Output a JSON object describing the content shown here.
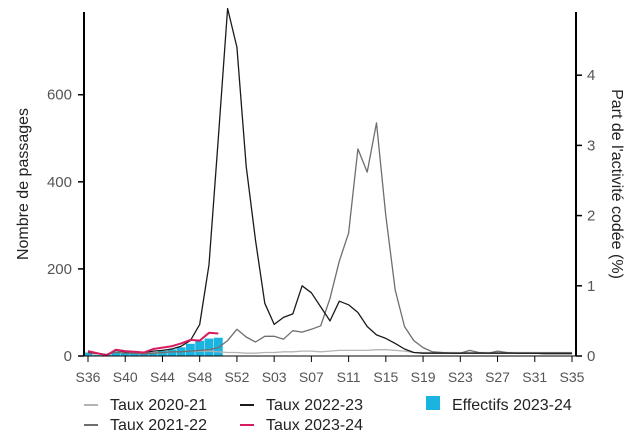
{
  "chart_data": {
    "type": "bar",
    "title": "",
    "ylabel": "Nombre de passages",
    "y2label": "Part de l'activité codée (%)",
    "xlabel": "",
    "ylim": [
      0,
      790
    ],
    "y2lim": [
      0,
      4.9
    ],
    "yticks": [
      0,
      200,
      400,
      600
    ],
    "y2ticks": [
      0,
      1,
      2,
      3,
      4
    ],
    "week_count": 53,
    "xticks": [
      {
        "index": 0,
        "label": "S36"
      },
      {
        "index": 4,
        "label": "S40"
      },
      {
        "index": 8,
        "label": "S44"
      },
      {
        "index": 12,
        "label": "S48"
      },
      {
        "index": 16,
        "label": "S52"
      },
      {
        "index": 20,
        "label": "S03"
      },
      {
        "index": 24,
        "label": "S07"
      },
      {
        "index": 28,
        "label": "S11"
      },
      {
        "index": 32,
        "label": "S15"
      },
      {
        "index": 36,
        "label": "S19"
      },
      {
        "index": 40,
        "label": "S23"
      },
      {
        "index": 44,
        "label": "S27"
      },
      {
        "index": 48,
        "label": "S31"
      },
      {
        "index": 52,
        "label": "S35"
      }
    ],
    "bars": {
      "name": "Effectifs 2023-24",
      "color": "#1bb3e0",
      "axis": "left",
      "values": [
        8,
        2,
        3,
        10,
        8,
        7,
        5,
        8,
        12,
        15,
        20,
        28,
        35,
        40,
        42
      ]
    },
    "series": [
      {
        "name": "Taux 2020-21",
        "color": "#b3b3b3",
        "axis": "right",
        "values": [
          0.05,
          0.03,
          0.02,
          0.08,
          0.05,
          0.05,
          0.04,
          0.05,
          0.05,
          0.06,
          0.06,
          0.07,
          0.07,
          0.07,
          0.06,
          0.05,
          0.05,
          0.04,
          0.04,
          0.05,
          0.05,
          0.06,
          0.06,
          0.07,
          0.07,
          0.06,
          0.07,
          0.08,
          0.08,
          0.08,
          0.08,
          0.09,
          0.09,
          0.08,
          0.07,
          0.05,
          0.05,
          0.05,
          0.05,
          0.05,
          0.05,
          0.05,
          0.05,
          0.05,
          0.05,
          0.05,
          0.05,
          0.05,
          0.05,
          0.05,
          0.05,
          0.05,
          0.05
        ]
      },
      {
        "name": "Taux 2021-22",
        "color": "#6e6e6e",
        "axis": "right",
        "values": [
          0.04,
          0.03,
          0.02,
          0.05,
          0.04,
          0.04,
          0.03,
          0.04,
          0.05,
          0.06,
          0.06,
          0.07,
          0.08,
          0.09,
          0.12,
          0.22,
          0.38,
          0.27,
          0.2,
          0.28,
          0.28,
          0.24,
          0.36,
          0.34,
          0.38,
          0.43,
          0.82,
          1.35,
          1.75,
          2.95,
          2.62,
          3.32,
          2.0,
          0.94,
          0.42,
          0.22,
          0.12,
          0.06,
          0.05,
          0.04,
          0.04,
          0.08,
          0.05,
          0.04,
          0.07,
          0.05,
          0.04,
          0.04,
          0.04,
          0.03,
          0.03,
          0.03,
          0.03
        ]
      },
      {
        "name": "Taux 2022-23",
        "color": "#1a1a1a",
        "axis": "right",
        "values": [
          0.06,
          0.04,
          0.02,
          0.08,
          0.06,
          0.06,
          0.05,
          0.07,
          0.08,
          0.1,
          0.14,
          0.22,
          0.45,
          1.3,
          3.1,
          4.95,
          4.4,
          2.7,
          1.65,
          0.75,
          0.45,
          0.55,
          0.6,
          1.0,
          0.9,
          0.7,
          0.5,
          0.78,
          0.73,
          0.62,
          0.42,
          0.3,
          0.25,
          0.18,
          0.1,
          0.05,
          0.04,
          0.04,
          0.04,
          0.04,
          0.04,
          0.04,
          0.04,
          0.04,
          0.04,
          0.04,
          0.04,
          0.04,
          0.04,
          0.04,
          0.04,
          0.04,
          0.04
        ]
      },
      {
        "name": "Taux 2023-24",
        "color": "#d81b60",
        "axis": "right",
        "values": [
          0.07,
          0.04,
          0.01,
          0.09,
          0.07,
          0.06,
          0.05,
          0.1,
          0.12,
          0.14,
          0.18,
          0.23,
          0.22,
          0.33,
          0.32
        ]
      }
    ],
    "legend": {
      "placement": "bottom",
      "entries": [
        "Taux 2020-21",
        "Taux 2022-23",
        "Effectifs 2023-24",
        "Taux 2021-22",
        "Taux 2023-24"
      ]
    }
  }
}
